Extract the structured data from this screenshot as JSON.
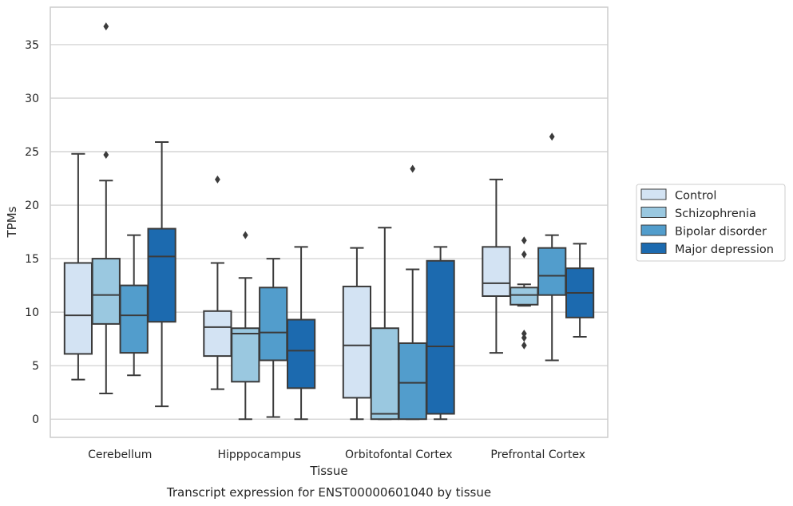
{
  "chart_data": {
    "type": "box",
    "xlabel": "Tissue",
    "ylabel": "TPMs",
    "caption": "Transcript expression for ENST00000601040 by tissue",
    "ylim": [
      -1.7,
      38.5
    ],
    "yticks": [
      0,
      5,
      10,
      15,
      20,
      25,
      30,
      35
    ],
    "grid": "horizontal",
    "legend_position": "right",
    "categories": [
      "Cerebellum",
      "Hipppocampus",
      "Orbitofontal Cortex",
      "Prefrontal Cortex"
    ],
    "series": [
      {
        "name": "Control",
        "color": "#d3e3f3",
        "boxes": [
          {
            "whislo": 3.7,
            "q1": 6.1,
            "med": 9.7,
            "q3": 14.6,
            "whishi": 24.8,
            "fliers": []
          },
          {
            "whislo": 2.8,
            "q1": 5.9,
            "med": 8.6,
            "q3": 10.1,
            "whishi": 14.6,
            "fliers": [
              22.4
            ]
          },
          {
            "whislo": 0.0,
            "q1": 2.0,
            "med": 6.9,
            "q3": 12.4,
            "whishi": 16.0,
            "fliers": []
          },
          {
            "whislo": 6.2,
            "q1": 11.5,
            "med": 12.7,
            "q3": 16.1,
            "whishi": 22.4,
            "fliers": []
          }
        ]
      },
      {
        "name": "Schizophrenia",
        "color": "#9ac8e0",
        "boxes": [
          {
            "whislo": 2.4,
            "q1": 8.9,
            "med": 11.6,
            "q3": 15.0,
            "whishi": 22.3,
            "fliers": [
              24.7,
              36.7
            ]
          },
          {
            "whislo": 0.0,
            "q1": 3.5,
            "med": 8.0,
            "q3": 8.5,
            "whishi": 13.2,
            "fliers": [
              17.2
            ]
          },
          {
            "whislo": 0.0,
            "q1": 0.0,
            "med": 0.5,
            "q3": 8.5,
            "whishi": 17.9,
            "fliers": []
          },
          {
            "whislo": 10.6,
            "q1": 10.7,
            "med": 11.6,
            "q3": 12.3,
            "whishi": 12.6,
            "fliers": [
              6.9,
              7.6,
              8.0,
              15.4,
              16.7
            ]
          }
        ]
      },
      {
        "name": "Bipolar disorder",
        "color": "#529dcc",
        "boxes": [
          {
            "whislo": 4.1,
            "q1": 6.2,
            "med": 9.7,
            "q3": 12.5,
            "whishi": 17.2,
            "fliers": []
          },
          {
            "whislo": 0.2,
            "q1": 5.5,
            "med": 8.1,
            "q3": 12.3,
            "whishi": 15.0,
            "fliers": []
          },
          {
            "whislo": 0.0,
            "q1": 0.0,
            "med": 3.4,
            "q3": 7.1,
            "whishi": 14.0,
            "fliers": [
              23.4
            ]
          },
          {
            "whislo": 5.5,
            "q1": 11.6,
            "med": 13.4,
            "q3": 16.0,
            "whishi": 17.2,
            "fliers": [
              26.4
            ]
          }
        ]
      },
      {
        "name": "Major depression",
        "color": "#1c6aaf",
        "boxes": [
          {
            "whislo": 1.2,
            "q1": 9.1,
            "med": 15.2,
            "q3": 17.8,
            "whishi": 25.9,
            "fliers": []
          },
          {
            "whislo": 0.0,
            "q1": 2.9,
            "med": 6.4,
            "q3": 9.3,
            "whishi": 16.1,
            "fliers": []
          },
          {
            "whislo": 0.0,
            "q1": 0.5,
            "med": 6.8,
            "q3": 14.8,
            "whishi": 16.1,
            "fliers": []
          },
          {
            "whislo": 7.7,
            "q1": 9.5,
            "med": 11.8,
            "q3": 14.1,
            "whishi": 16.4,
            "fliers": []
          }
        ]
      }
    ]
  }
}
